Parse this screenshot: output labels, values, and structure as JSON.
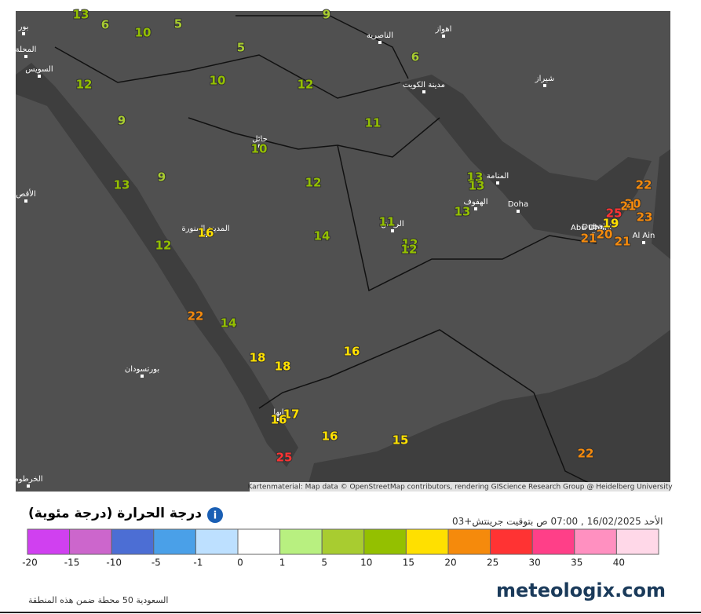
{
  "map": {
    "temps": [
      13,
      6,
      10,
      5,
      9,
      5,
      6,
      10,
      12,
      12,
      9,
      11,
      10,
      9,
      13,
      12,
      13,
      13,
      13,
      16,
      14,
      11,
      12,
      12,
      12,
      22,
      20,
      21,
      25,
      23,
      19,
      21,
      20,
      21,
      22,
      14,
      18,
      18,
      16,
      17,
      16,
      16,
      15,
      25,
      22
    ],
    "places": [
      "الناصرية",
      "اهواز",
      "مدينة الكويت",
      "شيراز",
      "السويس",
      "حائل",
      "المنامة",
      "الهفوف",
      "Doha",
      "الرياض",
      "المدينة المنورة",
      "Dubai",
      "Abu Dhabi",
      "Al Ain",
      "بورتسودان",
      "ابها",
      "المحلة",
      "بور",
      "الأقص",
      "الخرطوم"
    ],
    "attribution": "Kartenmaterial: Map data © OpenStreetMap contributors, rendering GIScience Research Group @ Heidelberg University"
  },
  "header": {
    "title": "درجة الحرارة (درجة مئوية)",
    "timestamp": "الأحد 16/02/2025 , 07:00 ص بتوقيت جرينتش+03"
  },
  "legend": {
    "ticks": [
      -20,
      -15,
      -10,
      -5,
      -1,
      0,
      1,
      5,
      10,
      15,
      20,
      25,
      30,
      35,
      40
    ],
    "colors": [
      "#d040f0",
      "#cc66cc",
      "#4c6ed4",
      "#4aa0e8",
      "#bde0ff",
      "#ffffff",
      "#b8f080",
      "#a8cc30",
      "#94c000",
      "#ffe000",
      "#f58a0c",
      "#ff3333",
      "#ff3f88",
      "#ff90c0",
      "#ffd8e8"
    ]
  },
  "footer": {
    "stations": "السعودية 50 محطة ضمن هذه المنطقة",
    "logo": "meteologix.com"
  }
}
